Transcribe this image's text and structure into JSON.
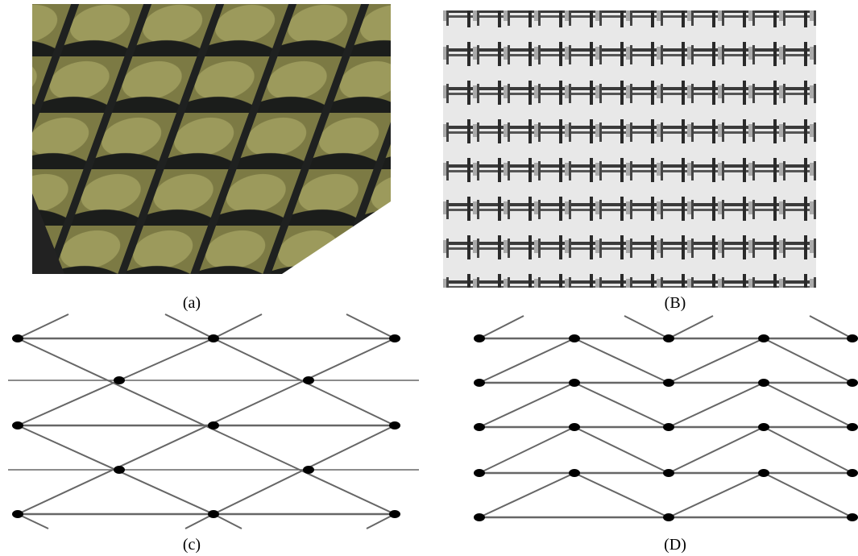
{
  "panels": [
    {
      "label": "(a)"
    },
    {
      "label": "(B)"
    },
    {
      "label": "(c)"
    },
    {
      "label": "(D)"
    }
  ]
}
